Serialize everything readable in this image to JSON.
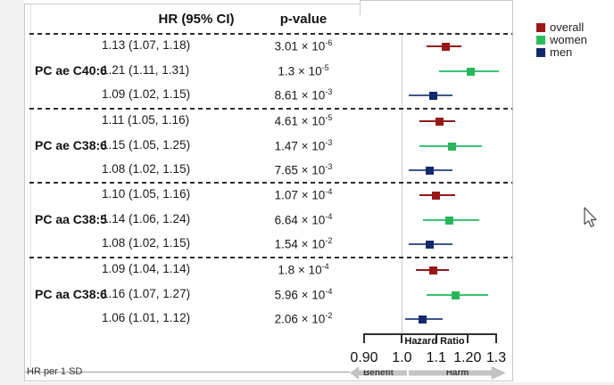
{
  "header": {
    "hr_col": "HR (95% CI)",
    "p_col": "p-value"
  },
  "legend": {
    "items": [
      {
        "label": "overall",
        "color": "#9A1717"
      },
      {
        "label": "women",
        "color": "#2BBD5E"
      },
      {
        "label": "men",
        "color": "#12296B"
      }
    ]
  },
  "axis": {
    "title": "Hazard Ratio",
    "scale": "log",
    "range": [
      0.9,
      1.3
    ],
    "tick_values": [
      0.9,
      1.0,
      1.1,
      1.2,
      1.3
    ],
    "tick_labels": [
      "0.90",
      "1.0",
      "1.1",
      "1.20",
      "1.3"
    ],
    "reference_line": 1.0,
    "benefit_label": "Benefit",
    "harm_label": "Harm"
  },
  "footnote": "HR per 1 SD",
  "chart_data": {
    "type": "forest",
    "x_scale": "log",
    "xlim": [
      0.9,
      1.3
    ],
    "p_value_infix": " × 10",
    "series_order": [
      "overall",
      "women",
      "men"
    ],
    "series_colors": {
      "overall": {
        "marker": "#9A1717",
        "line": "#8B1A1A"
      },
      "women": {
        "marker": "#27B659",
        "line": "#3AC272"
      },
      "men": {
        "marker": "#12296B",
        "line": "#3D5787"
      }
    },
    "groups": [
      {
        "name": "PC ae C40:6",
        "rows": [
          {
            "series": "overall",
            "hr": 1.13,
            "ci": [
              1.07,
              1.18
            ],
            "hr_text": "1.13 (1.07, 1.18)",
            "p_mantissa": "3.01",
            "p_exponent": "-6"
          },
          {
            "series": "women",
            "hr": 1.21,
            "ci": [
              1.11,
              1.31
            ],
            "hr_text": "1.21 (1.11, 1.31)",
            "p_mantissa": "1.3",
            "p_exponent": "-5"
          },
          {
            "series": "men",
            "hr": 1.09,
            "ci": [
              1.02,
              1.15
            ],
            "hr_text": "1.09 (1.02, 1.15)",
            "p_mantissa": "8.61",
            "p_exponent": "-3"
          }
        ]
      },
      {
        "name": "PC ae C38:6",
        "rows": [
          {
            "series": "overall",
            "hr": 1.11,
            "ci": [
              1.05,
              1.16
            ],
            "hr_text": "1.11 (1.05, 1.16)",
            "p_mantissa": "4.61",
            "p_exponent": "-5"
          },
          {
            "series": "women",
            "hr": 1.15,
            "ci": [
              1.05,
              1.25
            ],
            "hr_text": "1.15 (1.05, 1.25)",
            "p_mantissa": "1.47",
            "p_exponent": "-3"
          },
          {
            "series": "men",
            "hr": 1.08,
            "ci": [
              1.02,
              1.15
            ],
            "hr_text": "1.08 (1.02, 1.15)",
            "p_mantissa": "7.65",
            "p_exponent": "-3"
          }
        ]
      },
      {
        "name": "PC aa C38:5",
        "rows": [
          {
            "series": "overall",
            "hr": 1.1,
            "ci": [
              1.05,
              1.16
            ],
            "hr_text": "1.10 (1.05, 1.16)",
            "p_mantissa": "1.07",
            "p_exponent": "-4"
          },
          {
            "series": "women",
            "hr": 1.14,
            "ci": [
              1.06,
              1.24
            ],
            "hr_text": "1.14 (1.06, 1.24)",
            "p_mantissa": "6.64",
            "p_exponent": "-4"
          },
          {
            "series": "men",
            "hr": 1.08,
            "ci": [
              1.02,
              1.15
            ],
            "hr_text": "1.08 (1.02, 1.15)",
            "p_mantissa": "1.54",
            "p_exponent": "-2"
          }
        ]
      },
      {
        "name": "PC aa C38:6",
        "rows": [
          {
            "series": "overall",
            "hr": 1.09,
            "ci": [
              1.04,
              1.14
            ],
            "hr_text": "1.09 (1.04, 1.14)",
            "p_mantissa": "1.8",
            "p_exponent": "-4"
          },
          {
            "series": "women",
            "hr": 1.16,
            "ci": [
              1.07,
              1.27
            ],
            "hr_text": "1.16 (1.07, 1.27)",
            "p_mantissa": "5.96",
            "p_exponent": "-4"
          },
          {
            "series": "men",
            "hr": 1.06,
            "ci": [
              1.01,
              1.12
            ],
            "hr_text": "1.06 (1.01, 1.12)",
            "p_mantissa": "2.06",
            "p_exponent": "-2"
          }
        ]
      }
    ]
  }
}
